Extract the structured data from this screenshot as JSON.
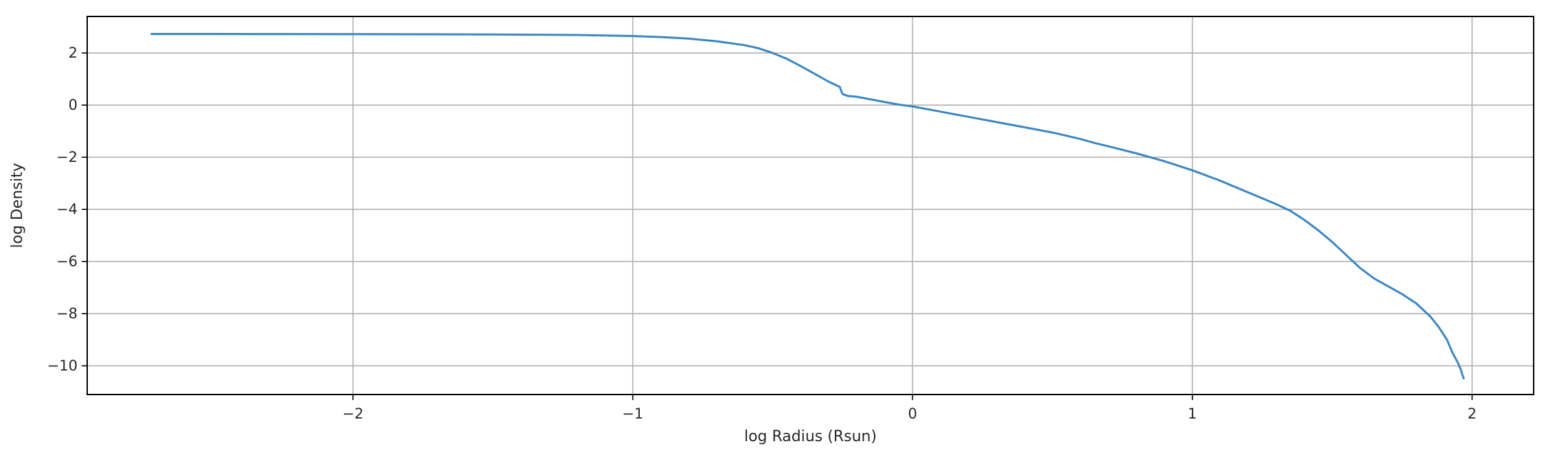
{
  "chart_data": {
    "type": "line",
    "title": "",
    "xlabel": "log Radius (Rsun)",
    "ylabel": "log Density",
    "xlim": [
      -2.95,
      2.22
    ],
    "ylim": [
      -11.1,
      3.4
    ],
    "xticks": [
      -2,
      -1,
      0,
      1,
      2
    ],
    "yticks": [
      2,
      0,
      -2,
      -4,
      -6,
      -8,
      -10
    ],
    "xtick_labels": [
      "−2",
      "−1",
      "0",
      "1",
      "2"
    ],
    "ytick_labels": [
      "2",
      "0",
      "−2",
      "−4",
      "−6",
      "−8",
      "−10"
    ],
    "grid": true,
    "legend": "none",
    "series": [
      {
        "color": "#3a86c4",
        "x": [
          -2.72,
          -2.5,
          -2.0,
          -1.5,
          -1.2,
          -1.0,
          -0.9,
          -0.8,
          -0.7,
          -0.6,
          -0.55,
          -0.5,
          -0.45,
          -0.4,
          -0.35,
          -0.3,
          -0.26,
          -0.255,
          -0.25,
          -0.23,
          -0.2,
          -0.15,
          -0.1,
          -0.05,
          0.0,
          0.1,
          0.2,
          0.3,
          0.4,
          0.5,
          0.6,
          0.65,
          0.7,
          0.8,
          0.9,
          1.0,
          1.1,
          1.2,
          1.3,
          1.35,
          1.4,
          1.45,
          1.5,
          1.55,
          1.6,
          1.65,
          1.7,
          1.75,
          1.8,
          1.85,
          1.88,
          1.91,
          1.93,
          1.95,
          1.96,
          1.965,
          1.97
        ],
        "y": [
          2.73,
          2.73,
          2.72,
          2.71,
          2.69,
          2.65,
          2.61,
          2.55,
          2.45,
          2.3,
          2.18,
          2.0,
          1.78,
          1.5,
          1.2,
          0.9,
          0.7,
          0.55,
          0.42,
          0.35,
          0.32,
          0.22,
          0.12,
          0.02,
          -0.05,
          -0.25,
          -0.45,
          -0.65,
          -0.85,
          -1.05,
          -1.3,
          -1.45,
          -1.58,
          -1.85,
          -2.15,
          -2.5,
          -2.9,
          -3.35,
          -3.8,
          -4.05,
          -4.4,
          -4.8,
          -5.25,
          -5.75,
          -6.25,
          -6.65,
          -6.95,
          -7.25,
          -7.6,
          -8.1,
          -8.5,
          -9.0,
          -9.5,
          -9.9,
          -10.15,
          -10.35,
          -10.48
        ]
      }
    ]
  }
}
